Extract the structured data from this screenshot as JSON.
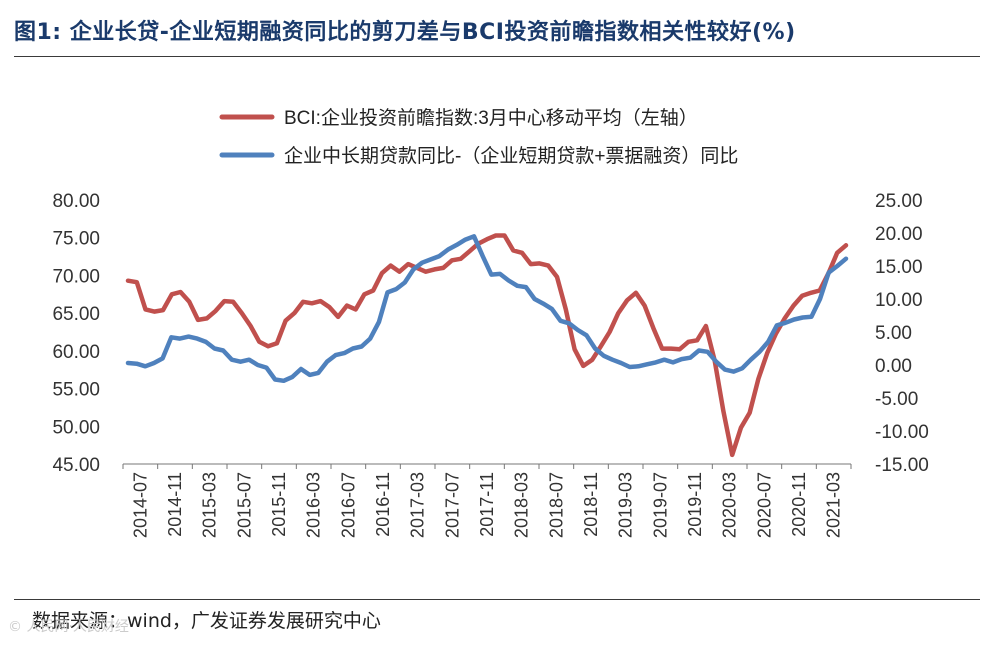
{
  "title": "图1: 企业长贷-企业短期融资同比的剪刀差与BCI投资前瞻指数相关性较好(%)",
  "source": "数据来源：wind，广发证券发展研究中心",
  "watermark": "© 人民网·人民财经",
  "colors": {
    "bci": "#c0504d",
    "spread": "#4f81bd",
    "axis": "#555555",
    "title": "#1a3a6b"
  },
  "chart_data": {
    "type": "line",
    "legend_position": "top",
    "grid": false,
    "y_left": {
      "min": 45,
      "max": 80,
      "ticks": [
        "80.00",
        "75.00",
        "70.00",
        "65.00",
        "60.00",
        "55.00",
        "50.00",
        "45.00"
      ]
    },
    "y_right": {
      "min": -15,
      "max": 25,
      "ticks": [
        "25.00",
        "20.00",
        "15.00",
        "10.00",
        "5.00",
        "0.00",
        "-5.00",
        "-10.00",
        "-15.00"
      ]
    },
    "x_labels": [
      "2014-07",
      "2014-11",
      "2015-03",
      "2015-07",
      "2015-11",
      "2016-03",
      "2016-07",
      "2016-11",
      "2017-03",
      "2017-07",
      "2017-11",
      "2018-03",
      "2018-07",
      "2018-11",
      "2019-03",
      "2019-07",
      "2019-11",
      "2020-03",
      "2020-07",
      "2020-11",
      "2021-03"
    ],
    "series": [
      {
        "name": "BCI:企业投资前瞻指数:3月中心移动平均（左轴）",
        "axis": "left",
        "color": "#c0504d",
        "values": [
          69.3,
          69.1,
          65.5,
          65.2,
          65.4,
          67.5,
          67.8,
          66.5,
          64.1,
          64.3,
          65.3,
          66.6,
          66.5,
          65.0,
          63.3,
          61.2,
          60.6,
          61.0,
          64.0,
          65.0,
          66.5,
          66.3,
          66.6,
          65.8,
          64.5,
          66.0,
          65.5,
          67.5,
          68.0,
          70.3,
          71.3,
          70.5,
          71.5,
          71.0,
          70.5,
          70.8,
          71.0,
          72.0,
          72.2,
          73.2,
          74.2,
          74.8,
          75.3,
          75.3,
          73.3,
          73.0,
          71.5,
          71.6,
          71.3,
          69.8,
          65.5,
          60.2,
          58.0,
          58.8,
          60.6,
          62.5,
          65.0,
          66.7,
          67.7,
          66.0,
          63.0,
          60.3,
          60.3,
          60.2,
          61.2,
          61.4,
          63.3,
          58.7,
          52.0,
          46.2,
          49.8,
          51.8,
          56.3,
          59.7,
          62.3,
          64.3,
          66.0,
          67.3,
          67.7,
          68.0,
          70.3,
          73.0,
          74.0
        ]
      },
      {
        "name": "企业中长期贷款同比-（企业短期贷款+票据融资）同比",
        "axis": "right",
        "color": "#4f81bd",
        "values": [
          0.3,
          0.2,
          -0.2,
          0.3,
          1.0,
          4.2,
          4.0,
          4.3,
          4.0,
          3.5,
          2.5,
          2.2,
          0.8,
          0.5,
          0.8,
          0.0,
          -0.4,
          -2.2,
          -2.4,
          -1.8,
          -0.6,
          -1.5,
          -1.2,
          0.5,
          1.5,
          1.8,
          2.5,
          2.8,
          4.0,
          6.5,
          11.0,
          11.5,
          12.5,
          14.5,
          15.5,
          16.0,
          16.5,
          17.5,
          18.2,
          19.0,
          19.5,
          16.5,
          13.7,
          13.8,
          12.8,
          12.0,
          11.8,
          10.0,
          9.3,
          8.5,
          6.7,
          6.3,
          5.3,
          4.5,
          2.5,
          1.4,
          0.8,
          0.3,
          -0.3,
          -0.2,
          0.1,
          0.4,
          0.8,
          0.4,
          0.9,
          1.1,
          2.2,
          2.0,
          0.5,
          -0.7,
          -1.0,
          -0.5,
          0.8,
          2.0,
          3.5,
          6.0,
          6.4,
          6.9,
          7.2,
          7.3,
          10.0,
          14.0,
          15.0,
          16.1
        ]
      }
    ]
  }
}
